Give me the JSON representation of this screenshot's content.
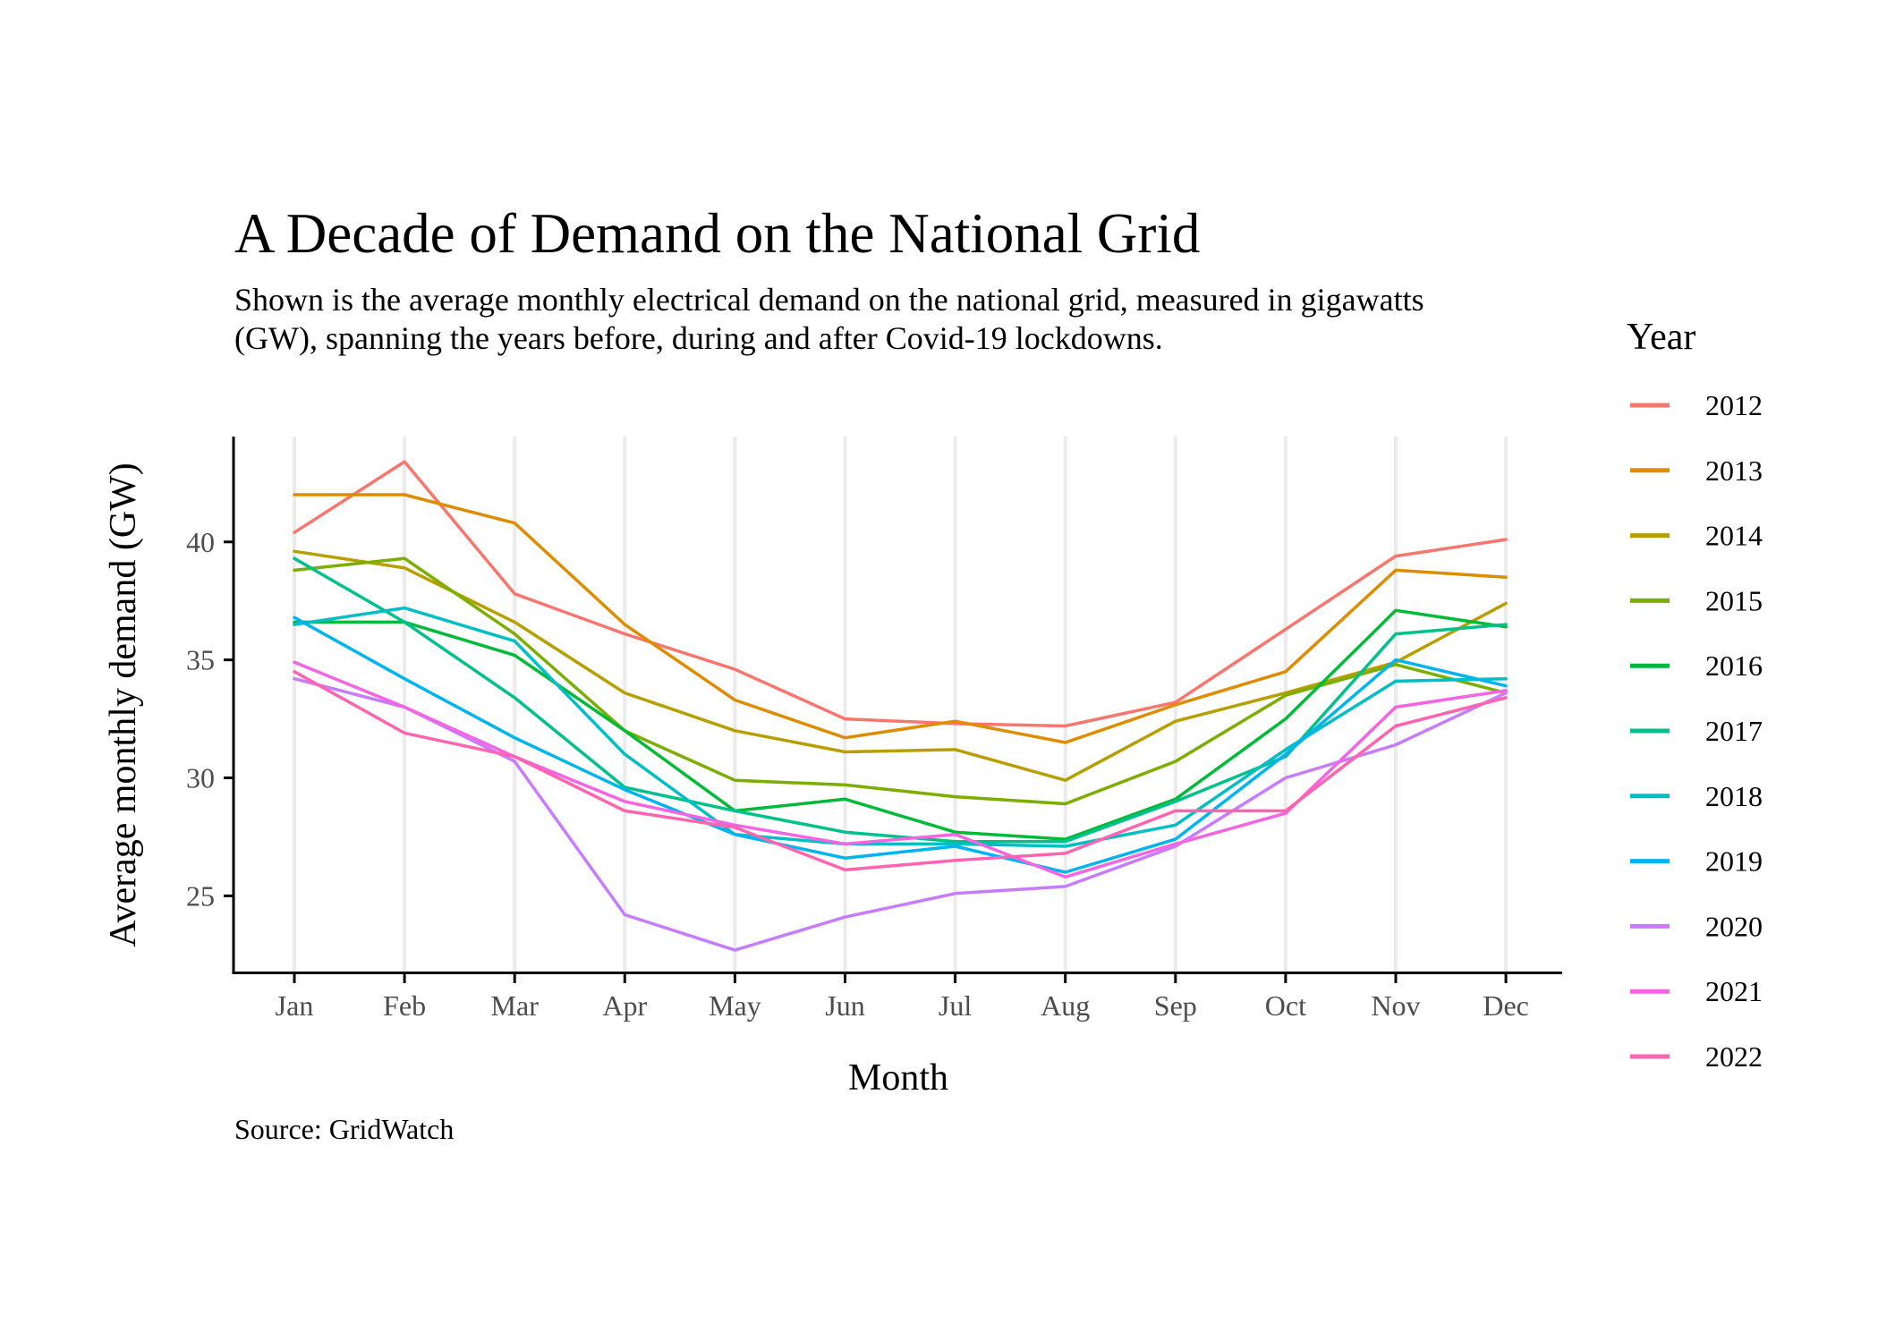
{
  "colors": {
    "background": "#ffffff",
    "grid": "#ebebeb",
    "axis": "#000000",
    "tick_text": "#4d4d4d"
  },
  "chart_data": {
    "type": "line",
    "title": "A Decade of Demand on the National Grid",
    "subtitle": [
      "Shown is the average monthly electrical demand on the national grid, measured in gigawatts",
      "(GW), spanning the years before, during and after Covid-19 lockdowns."
    ],
    "caption": "Source: GridWatch",
    "xlabel": "Month",
    "ylabel": "Average monthly demand (GW)",
    "categories": [
      "Jan",
      "Feb",
      "Mar",
      "Apr",
      "May",
      "Jun",
      "Jul",
      "Aug",
      "Sep",
      "Oct",
      "Nov",
      "Dec"
    ],
    "y_ticks": [
      25,
      30,
      35,
      40
    ],
    "ylim": [
      21.8,
      44.2
    ],
    "grid": "vertical major gridlines only",
    "legend": {
      "title": "Year",
      "position": "right"
    },
    "series": [
      {
        "name": "2012",
        "color": "#F8766D",
        "values": [
          40.4,
          43.4,
          37.8,
          36.1,
          34.6,
          32.5,
          32.3,
          32.2,
          33.2,
          36.3,
          39.4,
          40.1
        ]
      },
      {
        "name": "2013",
        "color": "#DE8C00",
        "values": [
          42.0,
          42.0,
          40.8,
          36.5,
          33.3,
          31.7,
          32.4,
          31.5,
          33.1,
          34.5,
          38.8,
          38.5
        ]
      },
      {
        "name": "2014",
        "color": "#B79F00",
        "values": [
          39.6,
          38.9,
          36.6,
          33.6,
          32.0,
          31.1,
          31.2,
          29.9,
          32.4,
          33.6,
          34.9,
          37.4
        ]
      },
      {
        "name": "2015",
        "color": "#7CAE00",
        "values": [
          38.8,
          39.3,
          36.1,
          32.0,
          29.9,
          29.7,
          29.2,
          28.9,
          30.7,
          33.5,
          34.8,
          33.6
        ]
      },
      {
        "name": "2016",
        "color": "#00BA38",
        "values": [
          36.6,
          36.6,
          35.2,
          32.0,
          28.6,
          29.1,
          27.7,
          27.4,
          29.1,
          32.5,
          37.1,
          36.4
        ]
      },
      {
        "name": "2017",
        "color": "#00C08B",
        "values": [
          39.3,
          36.6,
          33.4,
          29.6,
          28.6,
          27.7,
          27.3,
          27.3,
          29.0,
          30.9,
          36.1,
          36.5
        ]
      },
      {
        "name": "2018",
        "color": "#00BFC4",
        "values": [
          36.5,
          37.2,
          35.8,
          31.0,
          27.6,
          27.2,
          27.2,
          27.1,
          28.0,
          31.2,
          34.1,
          34.2
        ]
      },
      {
        "name": "2019",
        "color": "#00B4F0",
        "values": [
          36.8,
          34.2,
          31.7,
          29.5,
          27.6,
          26.6,
          27.1,
          26.0,
          27.4,
          31.0,
          35.0,
          33.9
        ]
      },
      {
        "name": "2020",
        "color": "#C77CFF",
        "values": [
          34.2,
          33.0,
          30.7,
          24.2,
          22.7,
          24.1,
          25.1,
          25.4,
          27.1,
          30.0,
          31.4,
          33.6
        ]
      },
      {
        "name": "2021",
        "color": "#F564E3",
        "values": [
          34.9,
          33.0,
          30.9,
          29.0,
          28.0,
          27.2,
          27.6,
          25.8,
          27.2,
          28.5,
          33.0,
          33.7
        ]
      },
      {
        "name": "2022",
        "color": "#FF64B0",
        "values": [
          34.5,
          31.9,
          30.9,
          28.6,
          27.9,
          26.1,
          26.5,
          26.8,
          28.6,
          28.6,
          32.2,
          33.4
        ]
      }
    ]
  }
}
